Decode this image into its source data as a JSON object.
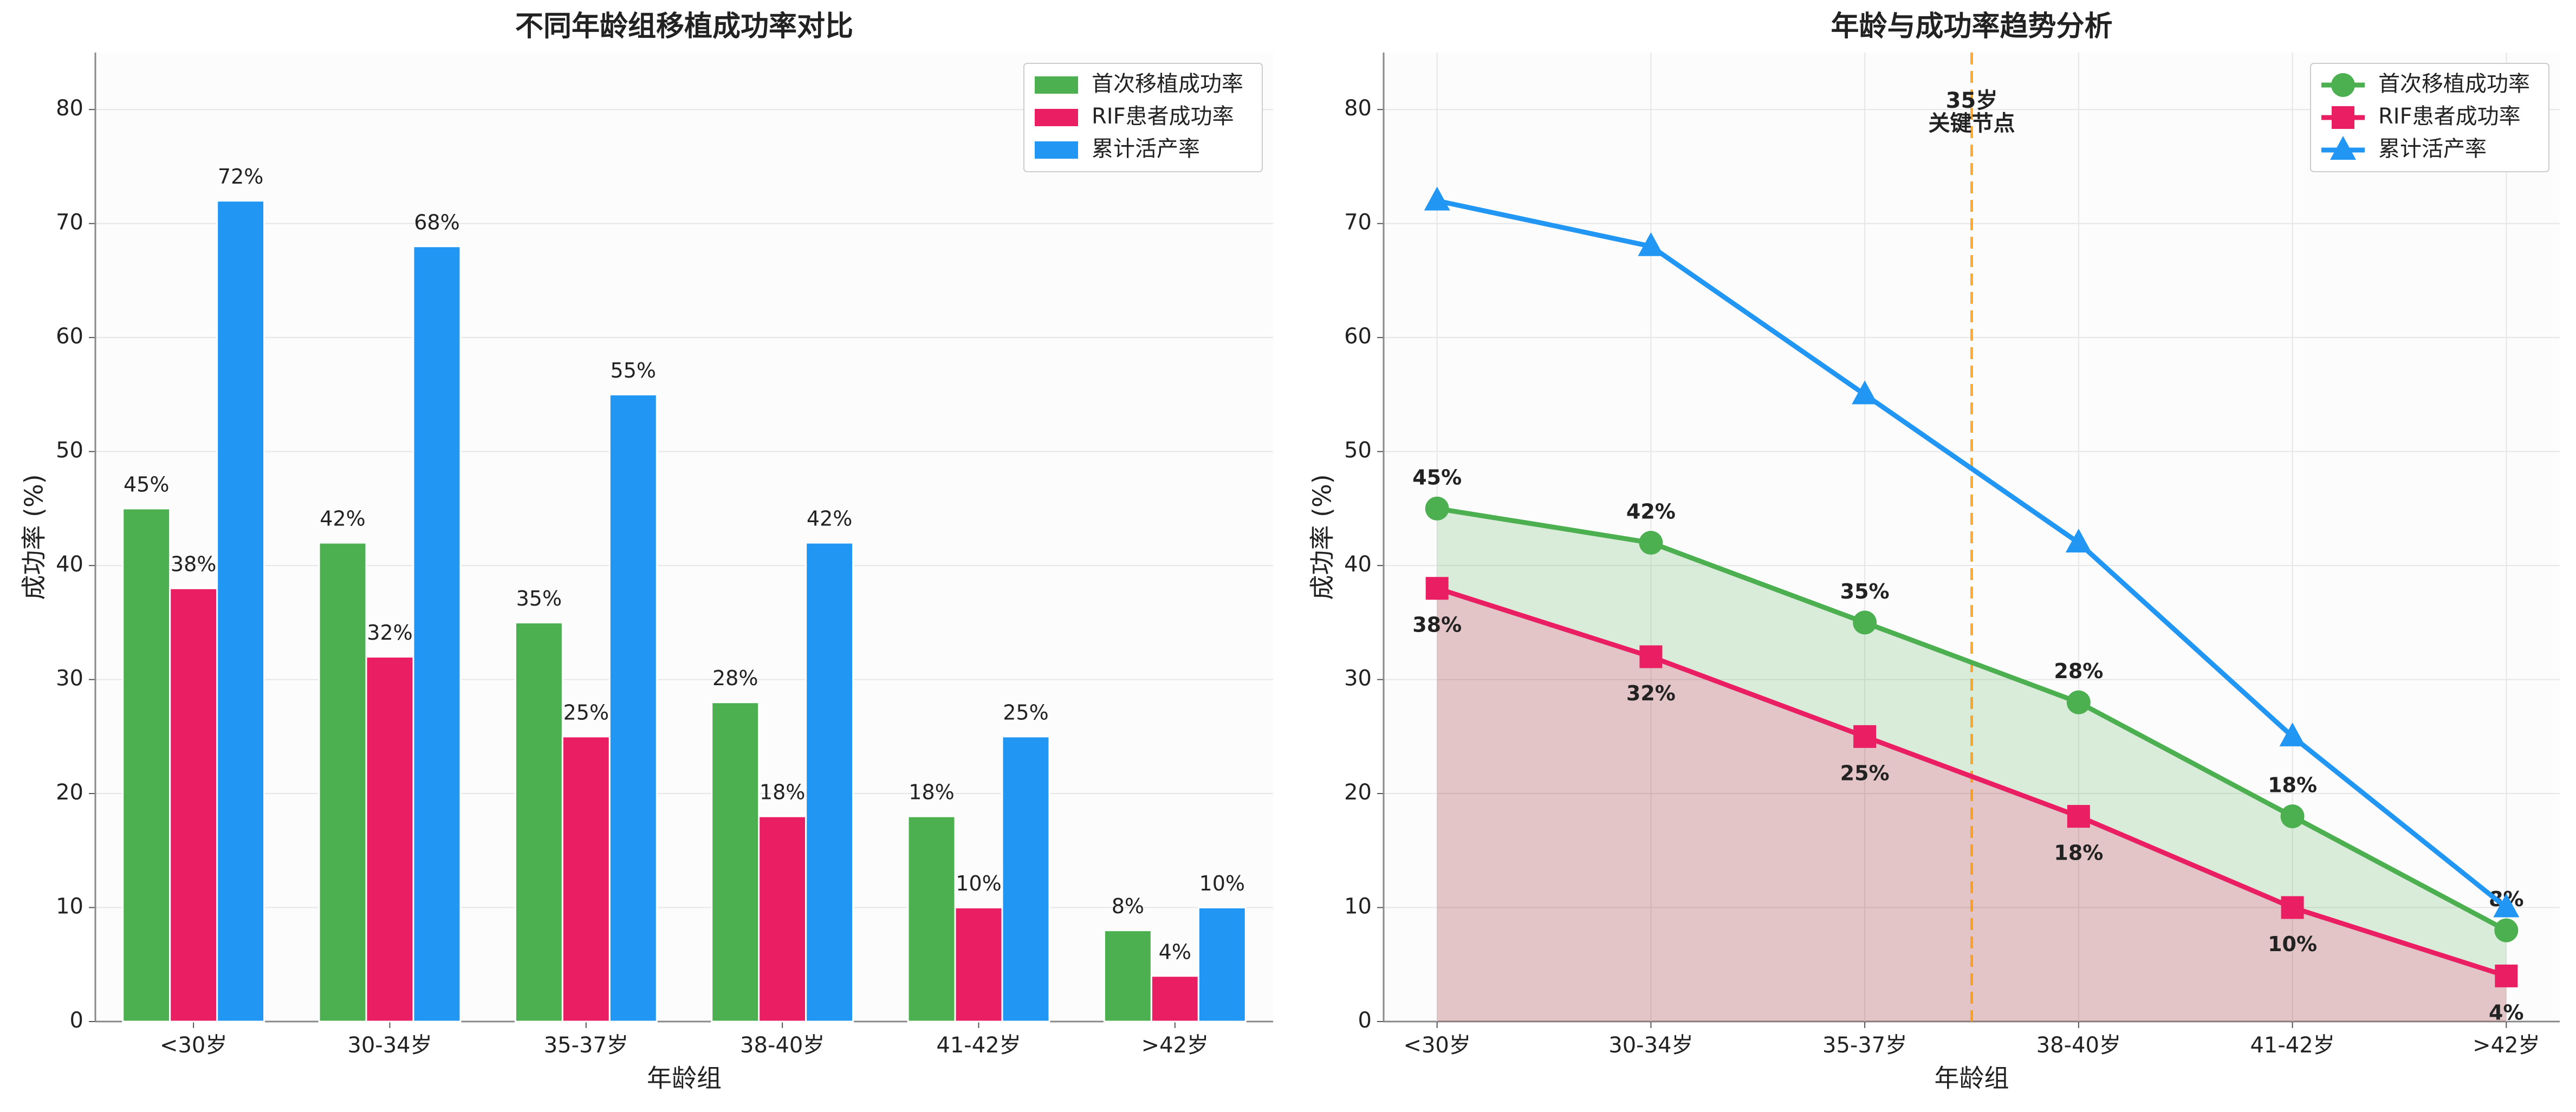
{
  "chart_data": [
    {
      "type": "bar",
      "title": "不同年龄组移植成功率对比",
      "x_label": "年龄组",
      "y_label": "成功率 (%)",
      "categories": [
        "<30岁",
        "30-34岁",
        "35-37岁",
        "38-40岁",
        "41-42岁",
        ">42岁"
      ],
      "series": [
        {
          "name": "首次移植成功率",
          "color": "#4caf50",
          "values": [
            45,
            42,
            35,
            28,
            18,
            8
          ],
          "value_labels": [
            "45%",
            "42%",
            "35%",
            "28%",
            "18%",
            "8%"
          ]
        },
        {
          "name": "RIF患者成功率",
          "color": "#e91e63",
          "values": [
            38,
            32,
            25,
            18,
            10,
            4
          ],
          "value_labels": [
            "38%",
            "32%",
            "25%",
            "18%",
            "10%",
            "4%"
          ]
        },
        {
          "name": "累计活产率",
          "color": "#2196f3",
          "values": [
            72,
            68,
            55,
            42,
            25,
            10
          ],
          "value_labels": [
            "72%",
            "68%",
            "55%",
            "42%",
            "25%",
            "10%"
          ]
        }
      ],
      "ylim": [
        0,
        85
      ],
      "yticks": [
        0,
        10,
        20,
        30,
        40,
        50,
        60,
        70,
        80
      ],
      "grid": true,
      "legend": "upper-right"
    },
    {
      "type": "line",
      "title": "年龄与成功率趋势分析",
      "x_label": "年龄组",
      "y_label": "成功率 (%)",
      "categories": [
        "<30岁",
        "30-34岁",
        "35-37岁",
        "38-40岁",
        "41-42岁",
        ">42岁"
      ],
      "series": [
        {
          "name": "首次移植成功率",
          "color": "#4caf50",
          "marker": "circle",
          "fill": "rgba(76,175,80,0.2)",
          "values": [
            45,
            42,
            35,
            28,
            18,
            8
          ],
          "value_labels": [
            "45%",
            "42%",
            "35%",
            "28%",
            "18%",
            "8%"
          ]
        },
        {
          "name": "RIF患者成功率",
          "color": "#e91e63",
          "marker": "square",
          "fill": "rgba(150,30,40,0.25)",
          "values": [
            38,
            32,
            25,
            18,
            10,
            4
          ],
          "value_labels": [
            "38%",
            "32%",
            "25%",
            "18%",
            "10%",
            "4%"
          ]
        },
        {
          "name": "累计活产率",
          "color": "#2196f3",
          "marker": "triangle",
          "values": [
            72,
            68,
            55,
            42,
            25,
            10
          ]
        }
      ],
      "annotation": {
        "x": 2.5,
        "text": [
          "35岁",
          "关键节点"
        ],
        "color": "#ff9800"
      },
      "ylim": [
        0,
        85
      ],
      "yticks": [
        0,
        10,
        20,
        30,
        40,
        50,
        60,
        70,
        80
      ],
      "grid": true,
      "legend": "upper-right"
    }
  ]
}
